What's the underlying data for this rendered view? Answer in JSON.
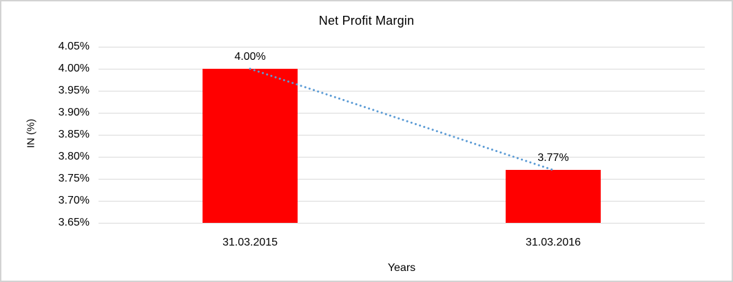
{
  "chart_data": {
    "type": "bar",
    "title": "Net Profit Margin",
    "xlabel": "Years",
    "ylabel": "IN (%)",
    "categories": [
      "31.03.2015",
      "31.03.2016"
    ],
    "series": [
      {
        "name": "Net Profit Margin",
        "values": [
          4.0,
          3.77
        ]
      }
    ],
    "data_labels": [
      "4.00%",
      "3.77%"
    ],
    "ylim": [
      3.65,
      4.05
    ],
    "ytick_interval": 0.05,
    "ytick_labels": [
      "4.05%",
      "4.00%",
      "3.95%",
      "3.90%",
      "3.85%",
      "3.80%",
      "3.75%",
      "3.70%",
      "3.65%"
    ],
    "grid": true,
    "legend": "none",
    "colors": {
      "bar": "#ff0000",
      "trendline": "#5b9bd5",
      "gridline": "#d9d9d9",
      "text": "#000000",
      "frame_border": "#d2d2d2"
    },
    "trendline": {
      "style": "dotted",
      "from_value": 4.0,
      "to_value": 3.77
    }
  }
}
